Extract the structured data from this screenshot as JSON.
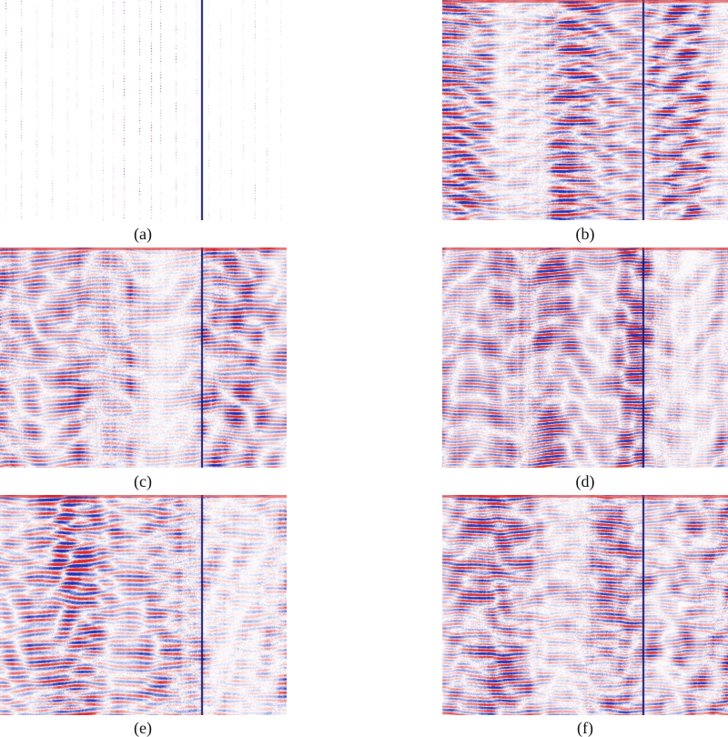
{
  "figure": {
    "panels": [
      {
        "label": "(a)",
        "kind": "sparse-traces"
      },
      {
        "label": "(b)",
        "kind": "seismic-section"
      },
      {
        "label": "(c)",
        "kind": "seismic-section"
      },
      {
        "label": "(d)",
        "kind": "seismic-section"
      },
      {
        "label": "(e)",
        "kind": "seismic-section"
      },
      {
        "label": "(f)",
        "kind": "seismic-section"
      }
    ],
    "colormap": {
      "positive": "#d7262b",
      "negative": "#1f2fb5",
      "zero": "#ffffff",
      "divider": "#1a1a6e"
    }
  }
}
